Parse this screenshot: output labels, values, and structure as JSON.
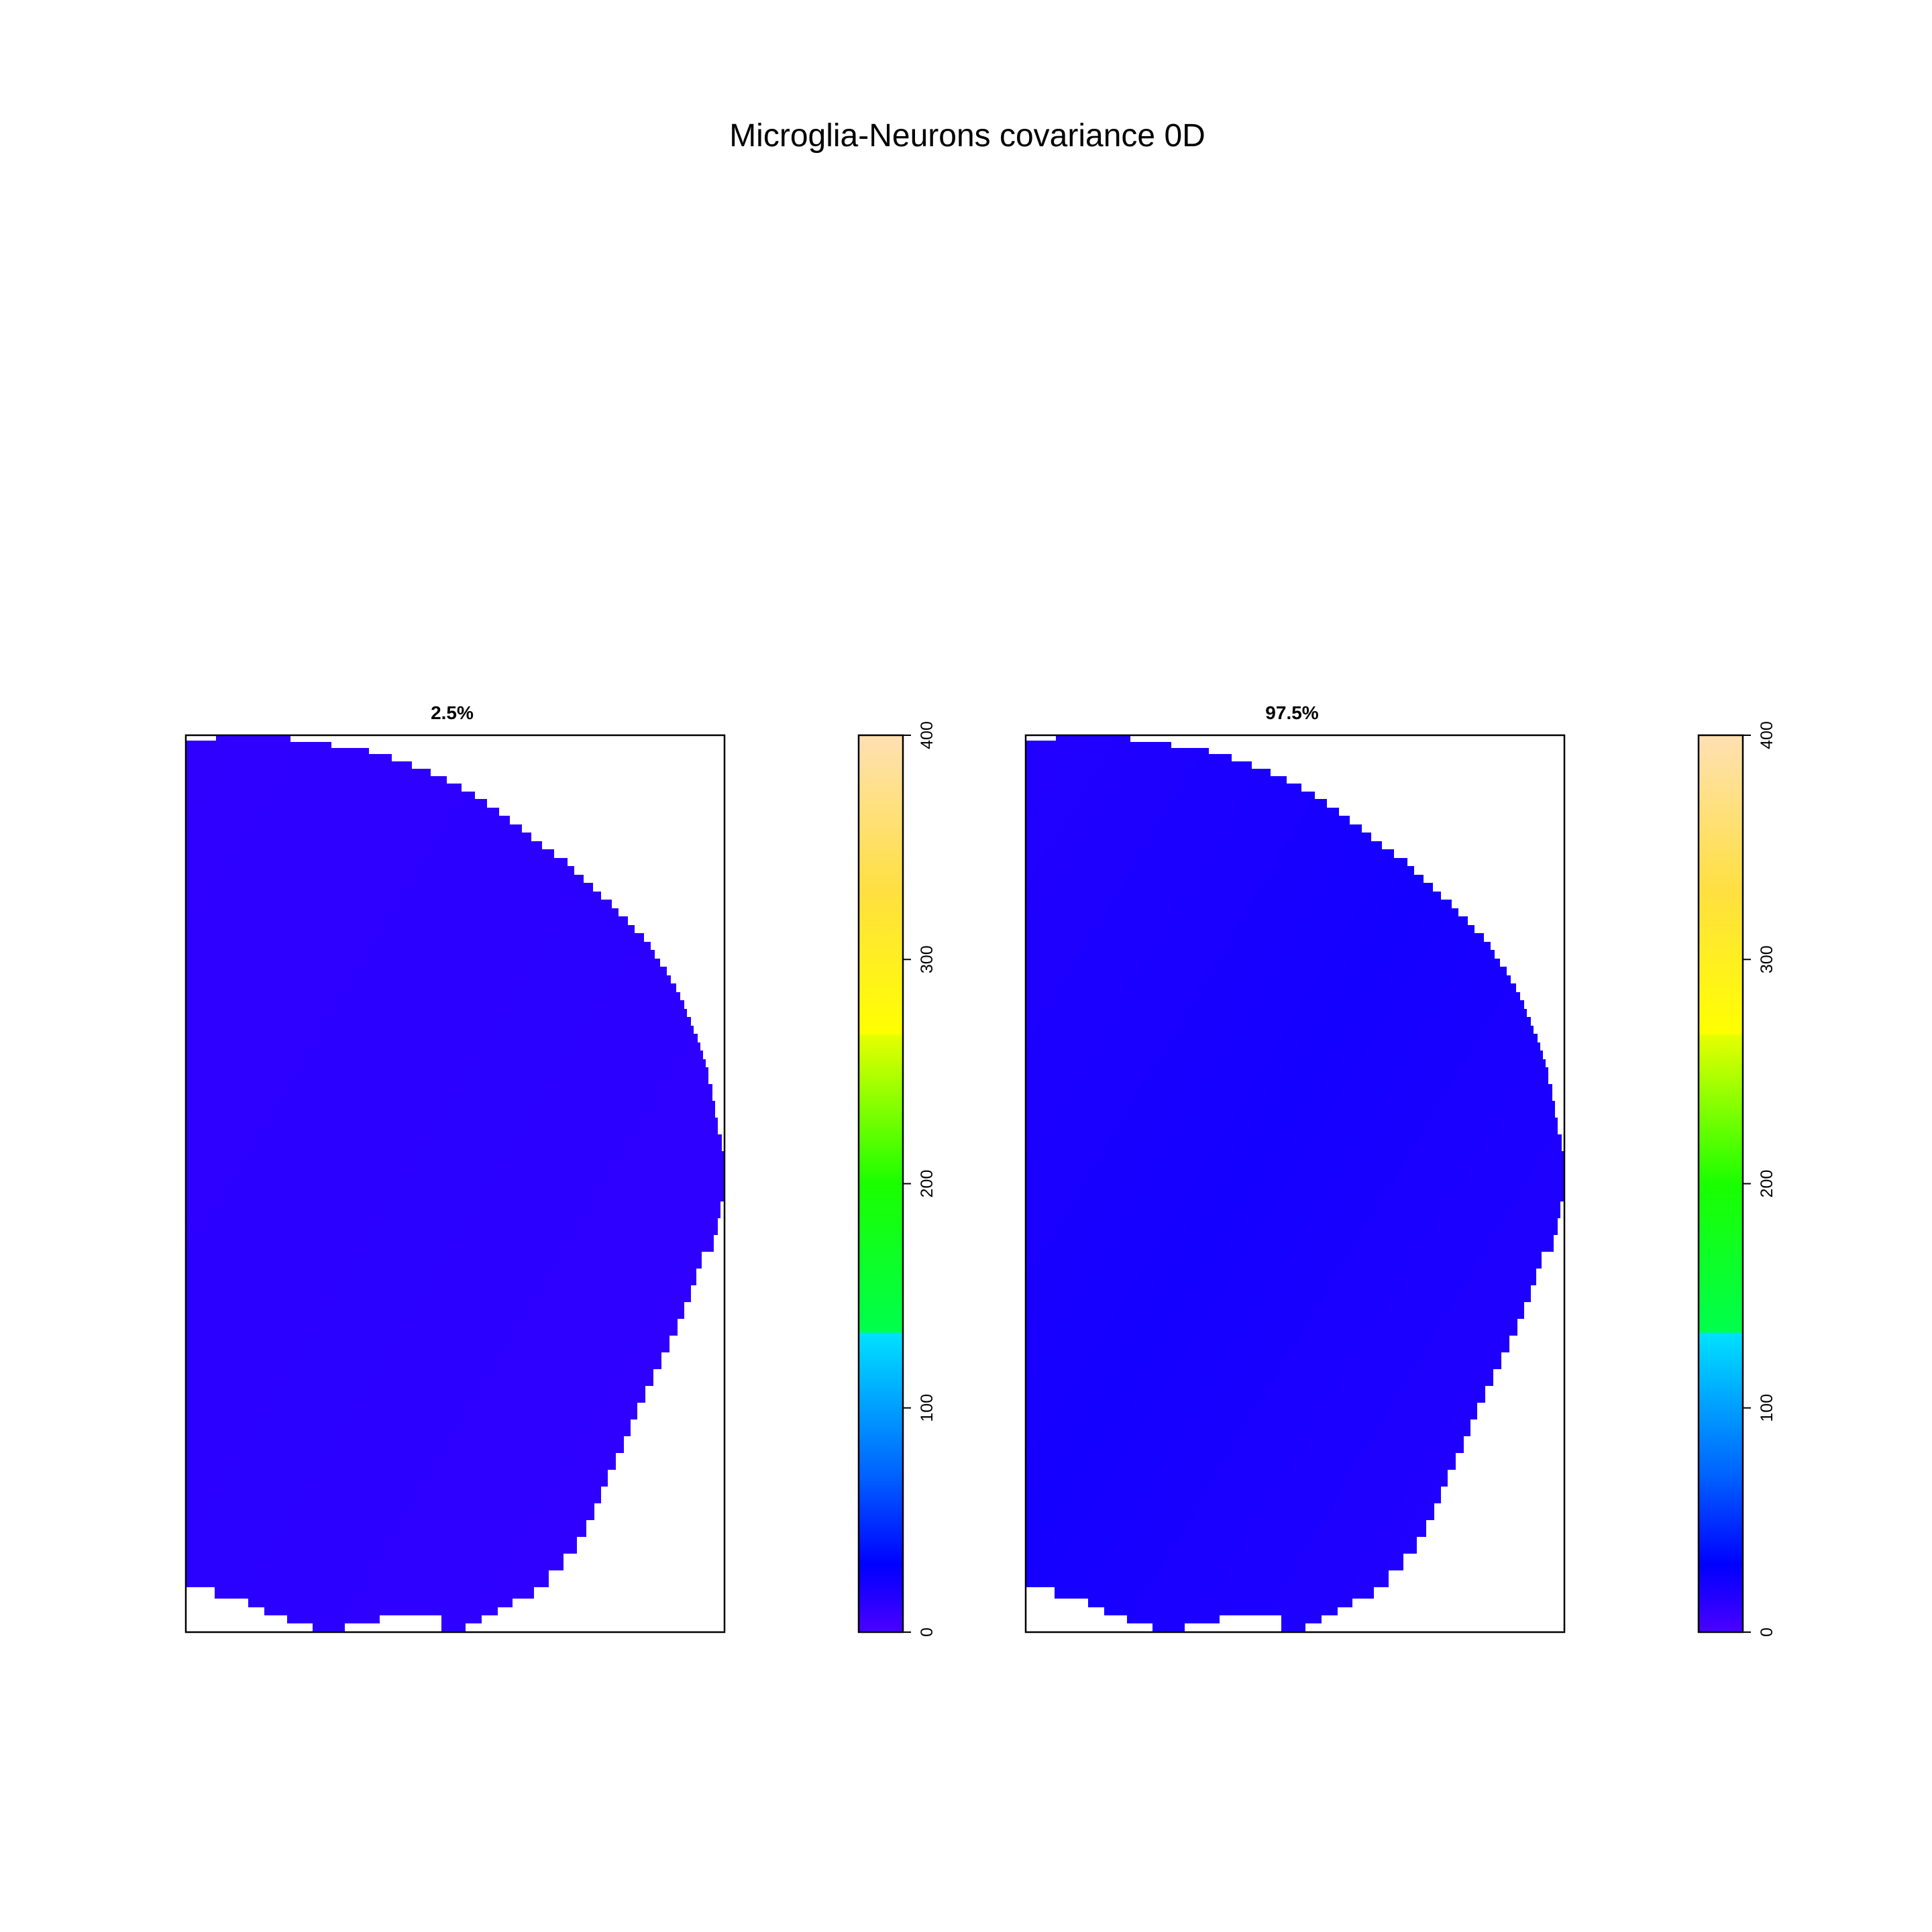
{
  "title": "Microglia-Neurons covariance 0D",
  "colors": {
    "background": "#ffffff",
    "axis": "#000000",
    "map_fill_low": "#3300ff",
    "map_fill_high": "#1a00ff"
  },
  "chart_data": [
    {
      "type": "heatmap",
      "title": "2.5%",
      "xlabel": "",
      "ylabel": "",
      "value_estimate_range": [
        5,
        15
      ],
      "colorbar": {
        "ticks": [
          0,
          100,
          200,
          300,
          400
        ],
        "range": [
          0,
          400
        ],
        "stops": [
          {
            "value": 0,
            "color": "#4b00ff"
          },
          {
            "value": 15,
            "color": "#2400ff"
          },
          {
            "value": 30,
            "color": "#0000ff"
          },
          {
            "value": 70,
            "color": "#0062ff"
          },
          {
            "value": 133,
            "color": "#00e1ff"
          },
          {
            "value": 134,
            "color": "#00ff4d"
          },
          {
            "value": 200,
            "color": "#1aff00"
          },
          {
            "value": 266,
            "color": "#e6ff00"
          },
          {
            "value": 267,
            "color": "#ffff00"
          },
          {
            "value": 330,
            "color": "#ffe040"
          },
          {
            "value": 400,
            "color": "#ffe0b3"
          }
        ]
      }
    },
    {
      "type": "heatmap",
      "title": "97.5%",
      "xlabel": "",
      "ylabel": "",
      "value_estimate_range": [
        10,
        25
      ],
      "colorbar": {
        "ticks": [
          0,
          100,
          200,
          300,
          400
        ],
        "range": [
          0,
          400
        ],
        "stops": [
          {
            "value": 0,
            "color": "#4b00ff"
          },
          {
            "value": 15,
            "color": "#2400ff"
          },
          {
            "value": 30,
            "color": "#0000ff"
          },
          {
            "value": 70,
            "color": "#0062ff"
          },
          {
            "value": 133,
            "color": "#00e1ff"
          },
          {
            "value": 134,
            "color": "#00ff4d"
          },
          {
            "value": 200,
            "color": "#1aff00"
          },
          {
            "value": 266,
            "color": "#e6ff00"
          },
          {
            "value": 267,
            "color": "#ffff00"
          },
          {
            "value": 330,
            "color": "#ffe040"
          },
          {
            "value": 400,
            "color": "#ffe0b3"
          }
        ]
      }
    }
  ]
}
